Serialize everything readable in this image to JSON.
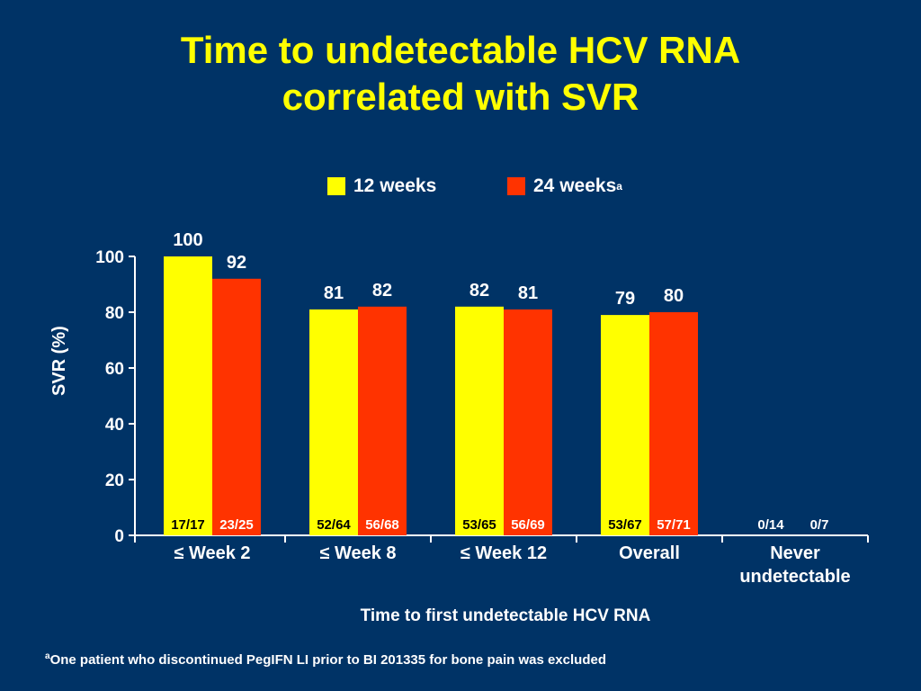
{
  "title_line1": "Time to undetectable HCV RNA",
  "title_line2": "correlated with SVR",
  "footnote_marker": "a",
  "footnote_text": "One patient who discontinued PegIFN LI prior to BI 201335 for bone pain was excluded",
  "colors": {
    "background": "#003366",
    "series1": "#ffff00",
    "series2": "#ff3300",
    "title": "#ffff00"
  },
  "chart_data": {
    "type": "bar",
    "title": "Time to undetectable HCV RNA correlated with SVR",
    "xlabel": "Time to first undetectable HCV RNA",
    "ylabel": "SVR (%)",
    "ylim": [
      0,
      100
    ],
    "yticks": [
      0,
      20,
      40,
      60,
      80,
      100
    ],
    "grid": false,
    "legend_position": "top-center",
    "categories": [
      "≤ Week 2",
      "≤ Week 8",
      "≤ Week 12",
      "Overall",
      "Never undetectable"
    ],
    "series": [
      {
        "name": "12 weeks",
        "legend_sup": "",
        "color": "#ffff00",
        "values": [
          100,
          81,
          82,
          79,
          0
        ],
        "value_labels": [
          "100",
          "81",
          "82",
          "79",
          ""
        ],
        "counts": [
          "17/17",
          "52/64",
          "53/65",
          "53/67",
          "0/14"
        ]
      },
      {
        "name": "24 weeks",
        "legend_sup": "a",
        "color": "#ff3300",
        "values": [
          92,
          82,
          81,
          80,
          0
        ],
        "value_labels": [
          "92",
          "82",
          "81",
          "80",
          ""
        ],
        "counts": [
          "23/25",
          "56/68",
          "56/69",
          "57/71",
          "0/7"
        ]
      }
    ]
  }
}
